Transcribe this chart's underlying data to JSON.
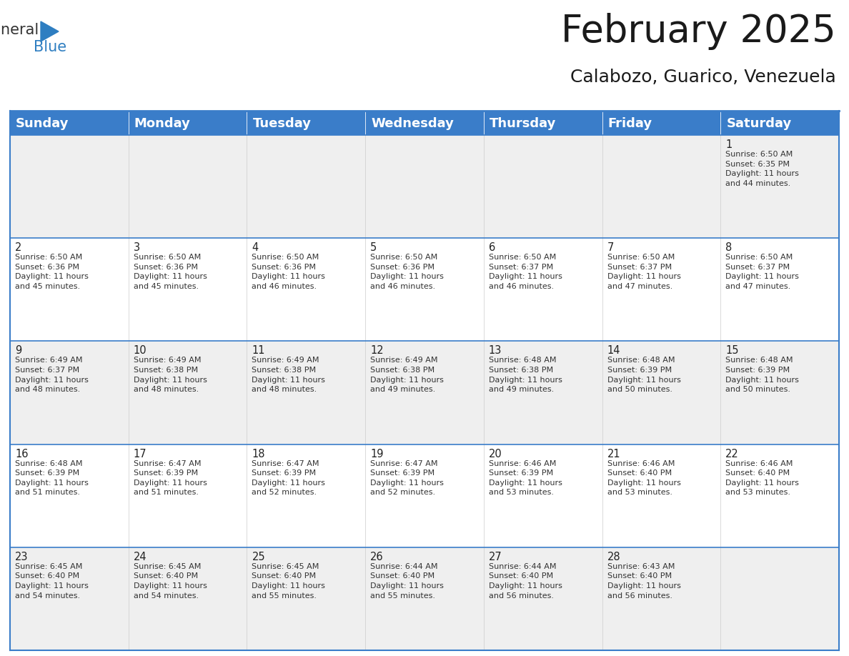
{
  "title": "February 2025",
  "subtitle": "Calabozo, Guarico, Venezuela",
  "header_color": "#3A7DC9",
  "header_text_color": "#FFFFFF",
  "cell_bg_alt": "#EFEFEF",
  "cell_bg_white": "#FFFFFF",
  "border_color": "#3A7DC9",
  "border_color_light": "#AAAAAA",
  "days_of_week": [
    "Sunday",
    "Monday",
    "Tuesday",
    "Wednesday",
    "Thursday",
    "Friday",
    "Saturday"
  ],
  "title_fontsize": 38,
  "subtitle_fontsize": 18,
  "header_fontsize": 13,
  "cell_day_fontsize": 10.5,
  "cell_info_fontsize": 8.0,
  "logo_color1": "#333333",
  "logo_color2": "#2E7EC1",
  "logo_triangle_color": "#2E7EC1",
  "weeks": [
    [
      {
        "day": null,
        "info": ""
      },
      {
        "day": null,
        "info": ""
      },
      {
        "day": null,
        "info": ""
      },
      {
        "day": null,
        "info": ""
      },
      {
        "day": null,
        "info": ""
      },
      {
        "day": null,
        "info": ""
      },
      {
        "day": 1,
        "info": "Sunrise: 6:50 AM\nSunset: 6:35 PM\nDaylight: 11 hours\nand 44 minutes."
      }
    ],
    [
      {
        "day": 2,
        "info": "Sunrise: 6:50 AM\nSunset: 6:36 PM\nDaylight: 11 hours\nand 45 minutes."
      },
      {
        "day": 3,
        "info": "Sunrise: 6:50 AM\nSunset: 6:36 PM\nDaylight: 11 hours\nand 45 minutes."
      },
      {
        "day": 4,
        "info": "Sunrise: 6:50 AM\nSunset: 6:36 PM\nDaylight: 11 hours\nand 46 minutes."
      },
      {
        "day": 5,
        "info": "Sunrise: 6:50 AM\nSunset: 6:36 PM\nDaylight: 11 hours\nand 46 minutes."
      },
      {
        "day": 6,
        "info": "Sunrise: 6:50 AM\nSunset: 6:37 PM\nDaylight: 11 hours\nand 46 minutes."
      },
      {
        "day": 7,
        "info": "Sunrise: 6:50 AM\nSunset: 6:37 PM\nDaylight: 11 hours\nand 47 minutes."
      },
      {
        "day": 8,
        "info": "Sunrise: 6:50 AM\nSunset: 6:37 PM\nDaylight: 11 hours\nand 47 minutes."
      }
    ],
    [
      {
        "day": 9,
        "info": "Sunrise: 6:49 AM\nSunset: 6:37 PM\nDaylight: 11 hours\nand 48 minutes."
      },
      {
        "day": 10,
        "info": "Sunrise: 6:49 AM\nSunset: 6:38 PM\nDaylight: 11 hours\nand 48 minutes."
      },
      {
        "day": 11,
        "info": "Sunrise: 6:49 AM\nSunset: 6:38 PM\nDaylight: 11 hours\nand 48 minutes."
      },
      {
        "day": 12,
        "info": "Sunrise: 6:49 AM\nSunset: 6:38 PM\nDaylight: 11 hours\nand 49 minutes."
      },
      {
        "day": 13,
        "info": "Sunrise: 6:48 AM\nSunset: 6:38 PM\nDaylight: 11 hours\nand 49 minutes."
      },
      {
        "day": 14,
        "info": "Sunrise: 6:48 AM\nSunset: 6:39 PM\nDaylight: 11 hours\nand 50 minutes."
      },
      {
        "day": 15,
        "info": "Sunrise: 6:48 AM\nSunset: 6:39 PM\nDaylight: 11 hours\nand 50 minutes."
      }
    ],
    [
      {
        "day": 16,
        "info": "Sunrise: 6:48 AM\nSunset: 6:39 PM\nDaylight: 11 hours\nand 51 minutes."
      },
      {
        "day": 17,
        "info": "Sunrise: 6:47 AM\nSunset: 6:39 PM\nDaylight: 11 hours\nand 51 minutes."
      },
      {
        "day": 18,
        "info": "Sunrise: 6:47 AM\nSunset: 6:39 PM\nDaylight: 11 hours\nand 52 minutes."
      },
      {
        "day": 19,
        "info": "Sunrise: 6:47 AM\nSunset: 6:39 PM\nDaylight: 11 hours\nand 52 minutes."
      },
      {
        "day": 20,
        "info": "Sunrise: 6:46 AM\nSunset: 6:39 PM\nDaylight: 11 hours\nand 53 minutes."
      },
      {
        "day": 21,
        "info": "Sunrise: 6:46 AM\nSunset: 6:40 PM\nDaylight: 11 hours\nand 53 minutes."
      },
      {
        "day": 22,
        "info": "Sunrise: 6:46 AM\nSunset: 6:40 PM\nDaylight: 11 hours\nand 53 minutes."
      }
    ],
    [
      {
        "day": 23,
        "info": "Sunrise: 6:45 AM\nSunset: 6:40 PM\nDaylight: 11 hours\nand 54 minutes."
      },
      {
        "day": 24,
        "info": "Sunrise: 6:45 AM\nSunset: 6:40 PM\nDaylight: 11 hours\nand 54 minutes."
      },
      {
        "day": 25,
        "info": "Sunrise: 6:45 AM\nSunset: 6:40 PM\nDaylight: 11 hours\nand 55 minutes."
      },
      {
        "day": 26,
        "info": "Sunrise: 6:44 AM\nSunset: 6:40 PM\nDaylight: 11 hours\nand 55 minutes."
      },
      {
        "day": 27,
        "info": "Sunrise: 6:44 AM\nSunset: 6:40 PM\nDaylight: 11 hours\nand 56 minutes."
      },
      {
        "day": 28,
        "info": "Sunrise: 6:43 AM\nSunset: 6:40 PM\nDaylight: 11 hours\nand 56 minutes."
      },
      {
        "day": null,
        "info": ""
      }
    ]
  ]
}
